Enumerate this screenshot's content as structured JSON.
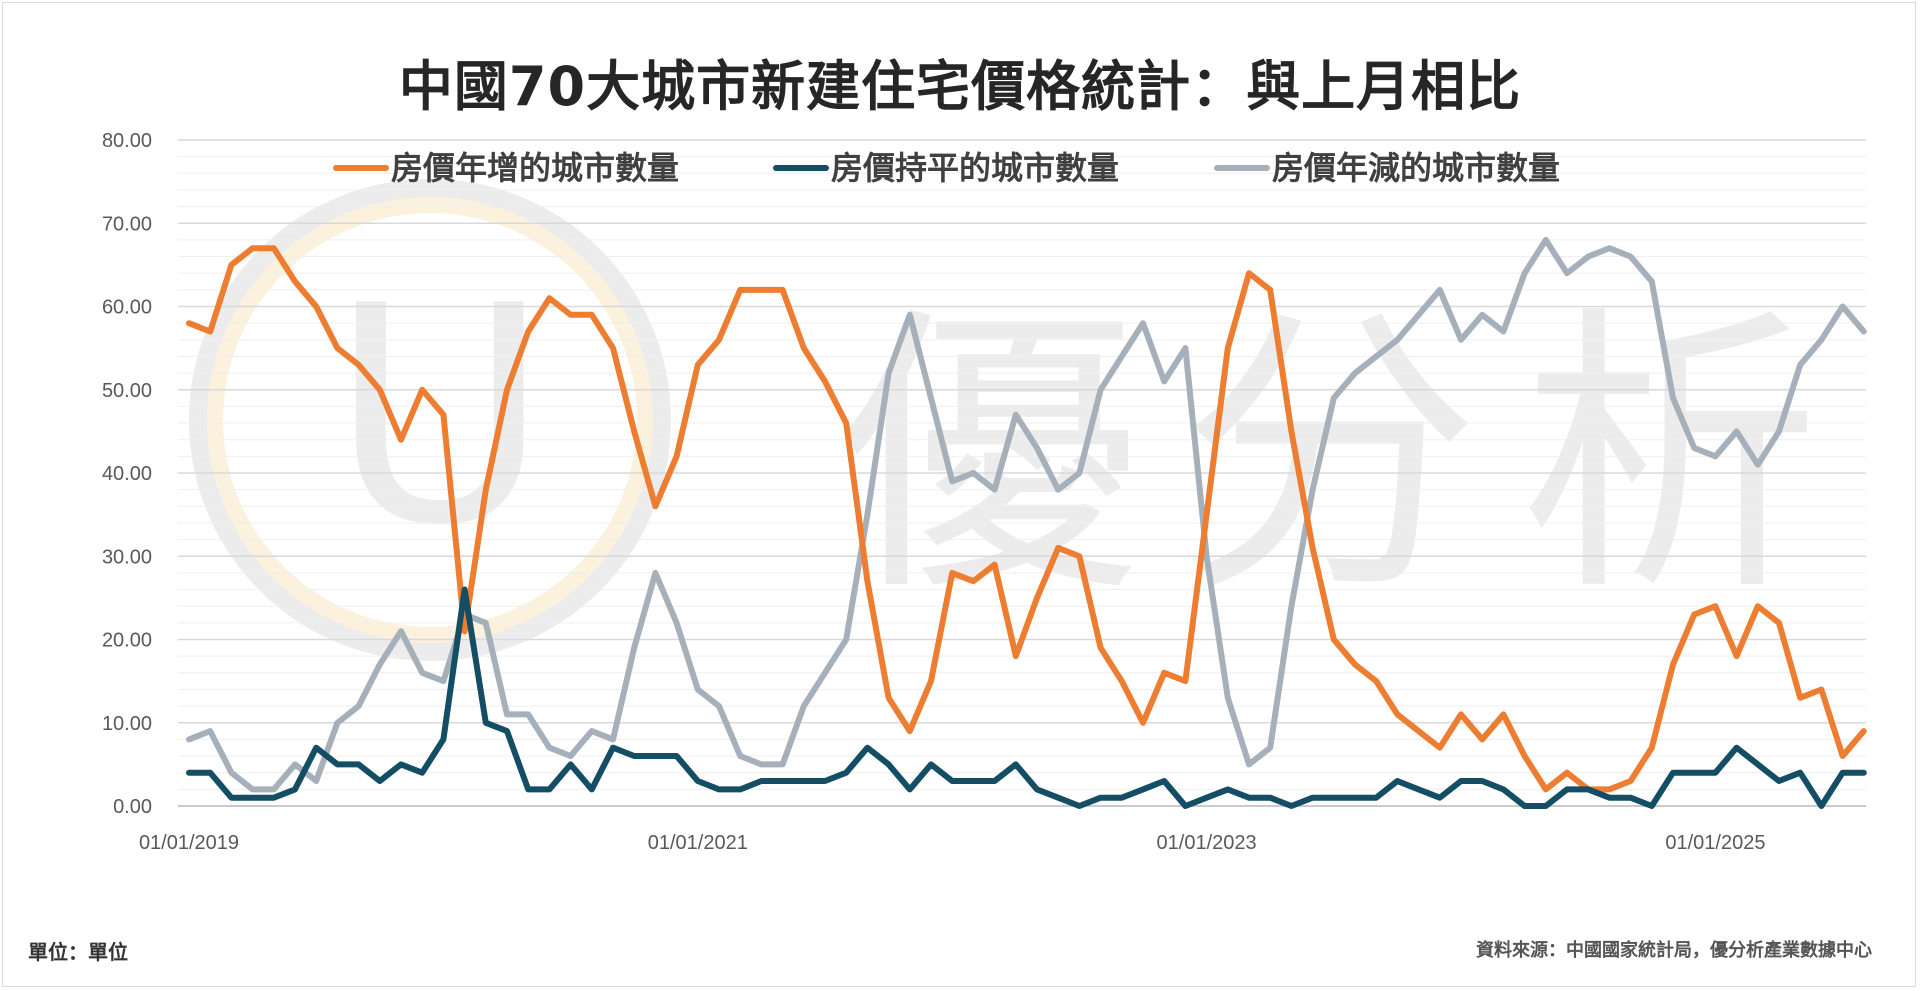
{
  "title": "中國70大城市新建住宅價格統計：與上月相比",
  "footer": {
    "unit": "單位：單位",
    "source": "資料來源：中國國家統計局，優分析產業數據中心"
  },
  "watermark": {
    "logo_text": "U",
    "text": [
      "優",
      "分",
      "析"
    ]
  },
  "chart_data": {
    "type": "line",
    "ylim": [
      0,
      80
    ],
    "y_ticks": [
      "0.00",
      "10.00",
      "20.00",
      "30.00",
      "40.00",
      "50.00",
      "60.00",
      "70.00",
      "80.00"
    ],
    "x_tick_labels": [
      {
        "index": 0,
        "label": "01/01/2019"
      },
      {
        "index": 24,
        "label": "01/01/2021"
      },
      {
        "index": 48,
        "label": "01/01/2023"
      },
      {
        "index": 72,
        "label": "01/01/2025"
      }
    ],
    "legend_position": "top",
    "grid": true,
    "series": [
      {
        "name": "房價年增的城市數量",
        "color": "#ED7D31",
        "values": [
          58,
          57,
          65,
          67,
          67,
          63,
          60,
          55,
          53,
          50,
          44,
          50,
          47,
          21,
          38,
          50,
          57,
          61,
          59,
          59,
          55,
          45,
          36,
          42,
          53,
          56,
          62,
          62,
          62,
          55,
          51,
          46,
          27,
          13,
          9,
          15,
          28,
          27,
          29,
          18,
          25,
          31,
          30,
          19,
          15,
          10,
          16,
          15,
          35,
          55,
          64,
          62,
          45,
          31,
          20,
          17,
          15,
          11,
          9,
          7,
          11,
          8,
          11,
          6,
          2,
          4,
          2,
          2,
          3,
          7,
          17,
          23,
          24,
          18,
          24,
          22,
          13,
          14,
          6,
          9
        ]
      },
      {
        "name": "房價持平的城市數量",
        "color": "#134E64",
        "values": [
          4,
          4,
          1,
          1,
          1,
          2,
          7,
          5,
          5,
          3,
          5,
          4,
          8,
          26,
          10,
          9,
          2,
          2,
          5,
          2,
          7,
          6,
          6,
          6,
          3,
          2,
          2,
          3,
          3,
          3,
          3,
          4,
          7,
          5,
          2,
          5,
          3,
          3,
          3,
          5,
          2,
          1,
          0,
          1,
          1,
          2,
          3,
          0,
          1,
          2,
          1,
          1,
          0,
          1,
          1,
          1,
          1,
          3,
          2,
          1,
          3,
          3,
          2,
          0,
          0,
          2,
          2,
          1,
          1,
          0,
          4,
          4,
          4,
          7,
          5,
          3,
          4,
          0,
          4,
          4
        ]
      },
      {
        "name": "房價年減的城市數量",
        "color": "#A5B0BA",
        "values": [
          8,
          9,
          4,
          2,
          2,
          5,
          3,
          10,
          12,
          17,
          21,
          16,
          15,
          23,
          22,
          11,
          11,
          7,
          6,
          9,
          8,
          19,
          28,
          22,
          14,
          12,
          6,
          5,
          5,
          12,
          16,
          20,
          35,
          52,
          59,
          49,
          39,
          40,
          38,
          47,
          43,
          38,
          40,
          50,
          54,
          58,
          51,
          55,
          30,
          13,
          5,
          7,
          24,
          38,
          49,
          52,
          54,
          56,
          59,
          62,
          56,
          59,
          57,
          64,
          68,
          64,
          66,
          67,
          66,
          63,
          49,
          43,
          42,
          45,
          41,
          45,
          53,
          56,
          60,
          57
        ]
      }
    ]
  }
}
